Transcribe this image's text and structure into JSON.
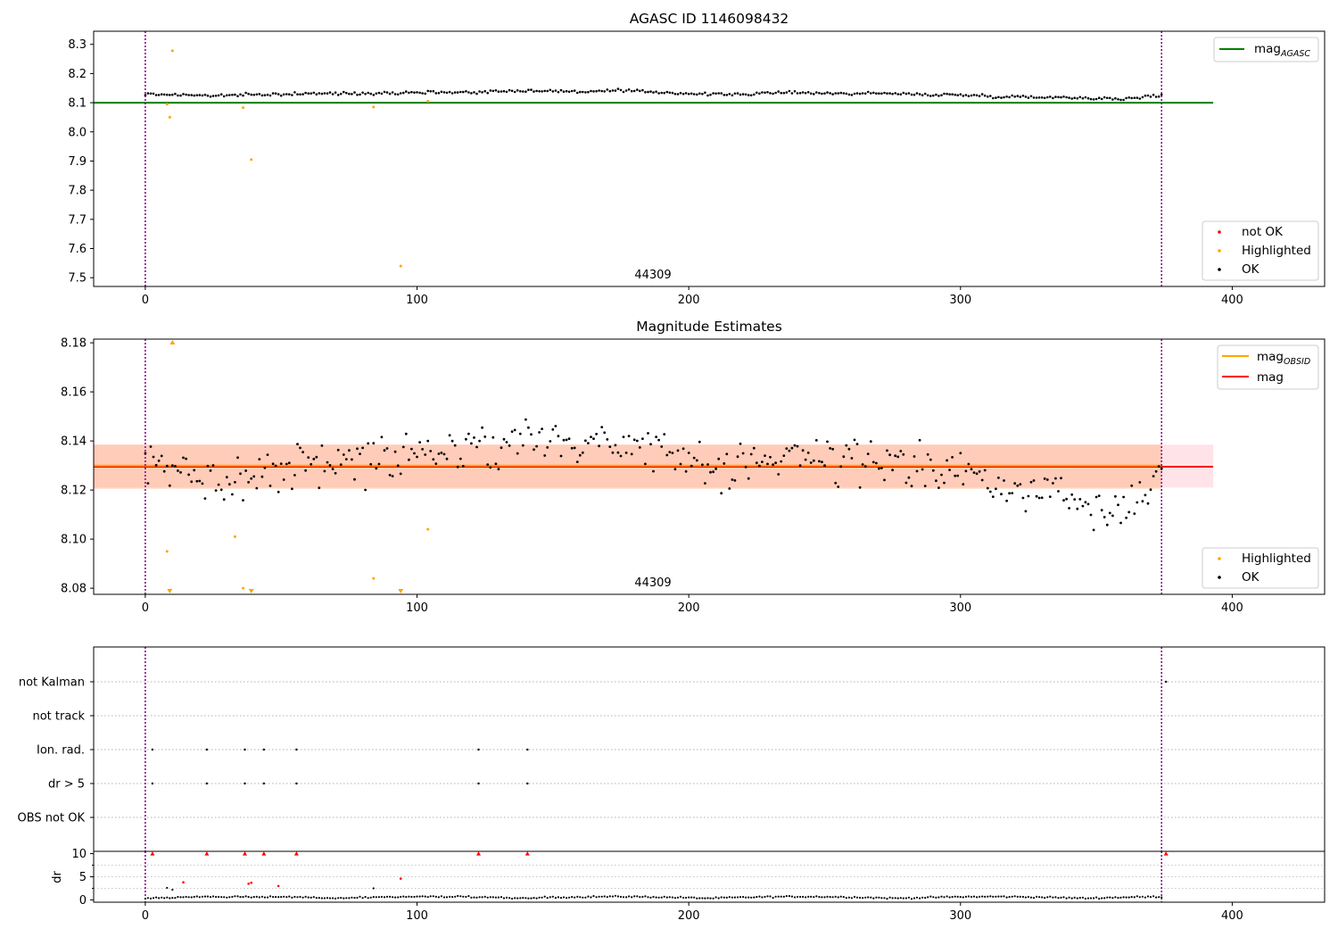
{
  "chart_data": [
    {
      "panel": "agasc",
      "type": "scatter",
      "title": "AGASC ID 1146098432",
      "xlim": [
        -19,
        434
      ],
      "ylim": [
        7.47,
        8.345
      ],
      "xticks": [
        "0",
        "100",
        "200",
        "300",
        "400"
      ],
      "yticks": [
        "7.5",
        "7.6",
        "7.7",
        "7.8",
        "7.9",
        "8.0",
        "8.1",
        "8.2",
        "8.3"
      ],
      "annotation": "44309",
      "hline": {
        "name": "mag_AGASC",
        "y": 8.1,
        "color": "#008000",
        "x_end": 393
      },
      "vlines": [
        0,
        374
      ],
      "legend_upper": [
        {
          "label_main": "mag",
          "label_sub": "AGASC",
          "color": "#008000",
          "kind": "line"
        }
      ],
      "legend_lower": [
        {
          "label": "not OK",
          "color": "#ff0000",
          "kind": "dot"
        },
        {
          "label": "Highlighted",
          "color": "#ffa500",
          "kind": "dot"
        },
        {
          "label": "OK",
          "color": "#000000",
          "kind": "dot"
        }
      ],
      "series": [
        {
          "name": "Highlighted",
          "color": "#ffa500",
          "points": [
            [
              8,
              8.095
            ],
            [
              9,
              8.05
            ],
            [
              10,
              8.278
            ],
            [
              36,
              8.083
            ],
            [
              39,
              7.905
            ],
            [
              84,
              8.085
            ],
            [
              94,
              7.54
            ],
            [
              104,
              8.105
            ]
          ]
        },
        {
          "name": "OK",
          "color": "#000000",
          "trend": [
            [
              0,
              8.129
            ],
            [
              10,
              8.128
            ],
            [
              25,
              8.124
            ],
            [
              40,
              8.127
            ],
            [
              60,
              8.131
            ],
            [
              80,
              8.132
            ],
            [
              100,
              8.136
            ],
            [
              120,
              8.136
            ],
            [
              140,
              8.142
            ],
            [
              160,
              8.138
            ],
            [
              175,
              8.141
            ],
            [
              190,
              8.136
            ],
            [
              205,
              8.129
            ],
            [
              220,
              8.129
            ],
            [
              240,
              8.136
            ],
            [
              255,
              8.131
            ],
            [
              270,
              8.133
            ],
            [
              285,
              8.128
            ],
            [
              300,
              8.127
            ],
            [
              315,
              8.121
            ],
            [
              335,
              8.119
            ],
            [
              350,
              8.116
            ],
            [
              360,
              8.112
            ],
            [
              374,
              8.126
            ]
          ],
          "x_range": [
            0,
            374
          ]
        }
      ]
    },
    {
      "panel": "magnitude",
      "type": "scatter",
      "title": "Magnitude Estimates",
      "xlim": [
        -19,
        434
      ],
      "ylim": [
        8.0775,
        8.1815
      ],
      "xticks": [
        "0",
        "100",
        "200",
        "300",
        "400"
      ],
      "yticks": [
        "8.08",
        "8.10",
        "8.12",
        "8.14",
        "8.16",
        "8.18"
      ],
      "annotation": "44309",
      "mag_obsid": 8.1295,
      "mag": 8.1295,
      "band_outer": [
        8.121,
        8.1385
      ],
      "band_inner": [
        8.1205,
        8.1385
      ],
      "vlines": [
        0,
        374
      ],
      "legend_upper": [
        {
          "label_main": "mag",
          "label_sub": "OBSID",
          "color": "#ffa500",
          "kind": "line"
        },
        {
          "label_main": "mag",
          "label_sub": "",
          "color": "#ff0000",
          "kind": "line"
        }
      ],
      "legend_lower": [
        {
          "label": "Highlighted",
          "color": "#ffa500",
          "kind": "dot"
        },
        {
          "label": "OK",
          "color": "#000000",
          "kind": "dot"
        }
      ],
      "series": [
        {
          "name": "Highlighted",
          "color": "#ffa500",
          "points": [
            [
              8,
              8.095
            ],
            [
              33,
              8.101
            ],
            [
              36,
              8.08
            ],
            [
              84,
              8.084
            ],
            [
              104,
              8.104
            ]
          ],
          "clipped_up": [
            10
          ],
          "clipped_down": [
            9,
            39,
            94
          ]
        },
        {
          "name": "OK",
          "color": "#000000",
          "x_range": [
            0,
            374
          ]
        }
      ]
    },
    {
      "panel": "flags",
      "type": "scatter",
      "categories": [
        "not Kalman",
        "not track",
        "Ion. rad.",
        "dr > 5",
        "OBS not OK"
      ],
      "vlines": [
        0,
        374
      ],
      "series": [
        {
          "name": "Ion. rad.",
          "x": [
            1,
            21,
            35,
            42,
            54,
            121,
            139
          ]
        },
        {
          "name": "dr > 5",
          "x": [
            1,
            21,
            35,
            42,
            54,
            121,
            139
          ]
        },
        {
          "name": "not Kalman",
          "x": [
            374
          ]
        }
      ]
    },
    {
      "panel": "dr",
      "type": "scatter",
      "ylabel": "dr",
      "xlim": [
        -19,
        434
      ],
      "ylim": [
        -0.5,
        10.5
      ],
      "xticks": [
        "0",
        "100",
        "200",
        "300",
        "400"
      ],
      "yticks": [
        "0",
        "5",
        "10"
      ],
      "vlines": [
        0,
        374
      ],
      "series": [
        {
          "name": "dr > 5",
          "color": "#ff0000",
          "marker": "triangle-up",
          "x": [
            1,
            21,
            35,
            42,
            54,
            121,
            139,
            374
          ],
          "y": 10
        },
        {
          "name": "not OK",
          "color": "#ff0000",
          "points": [
            [
              14,
              3.8
            ],
            [
              38,
              3.5
            ],
            [
              39,
              3.7
            ],
            [
              49,
              3.0
            ],
            [
              94,
              4.6
            ]
          ]
        },
        {
          "name": "OK",
          "color": "#000000",
          "x_range": [
            0,
            374
          ]
        }
      ]
    }
  ]
}
